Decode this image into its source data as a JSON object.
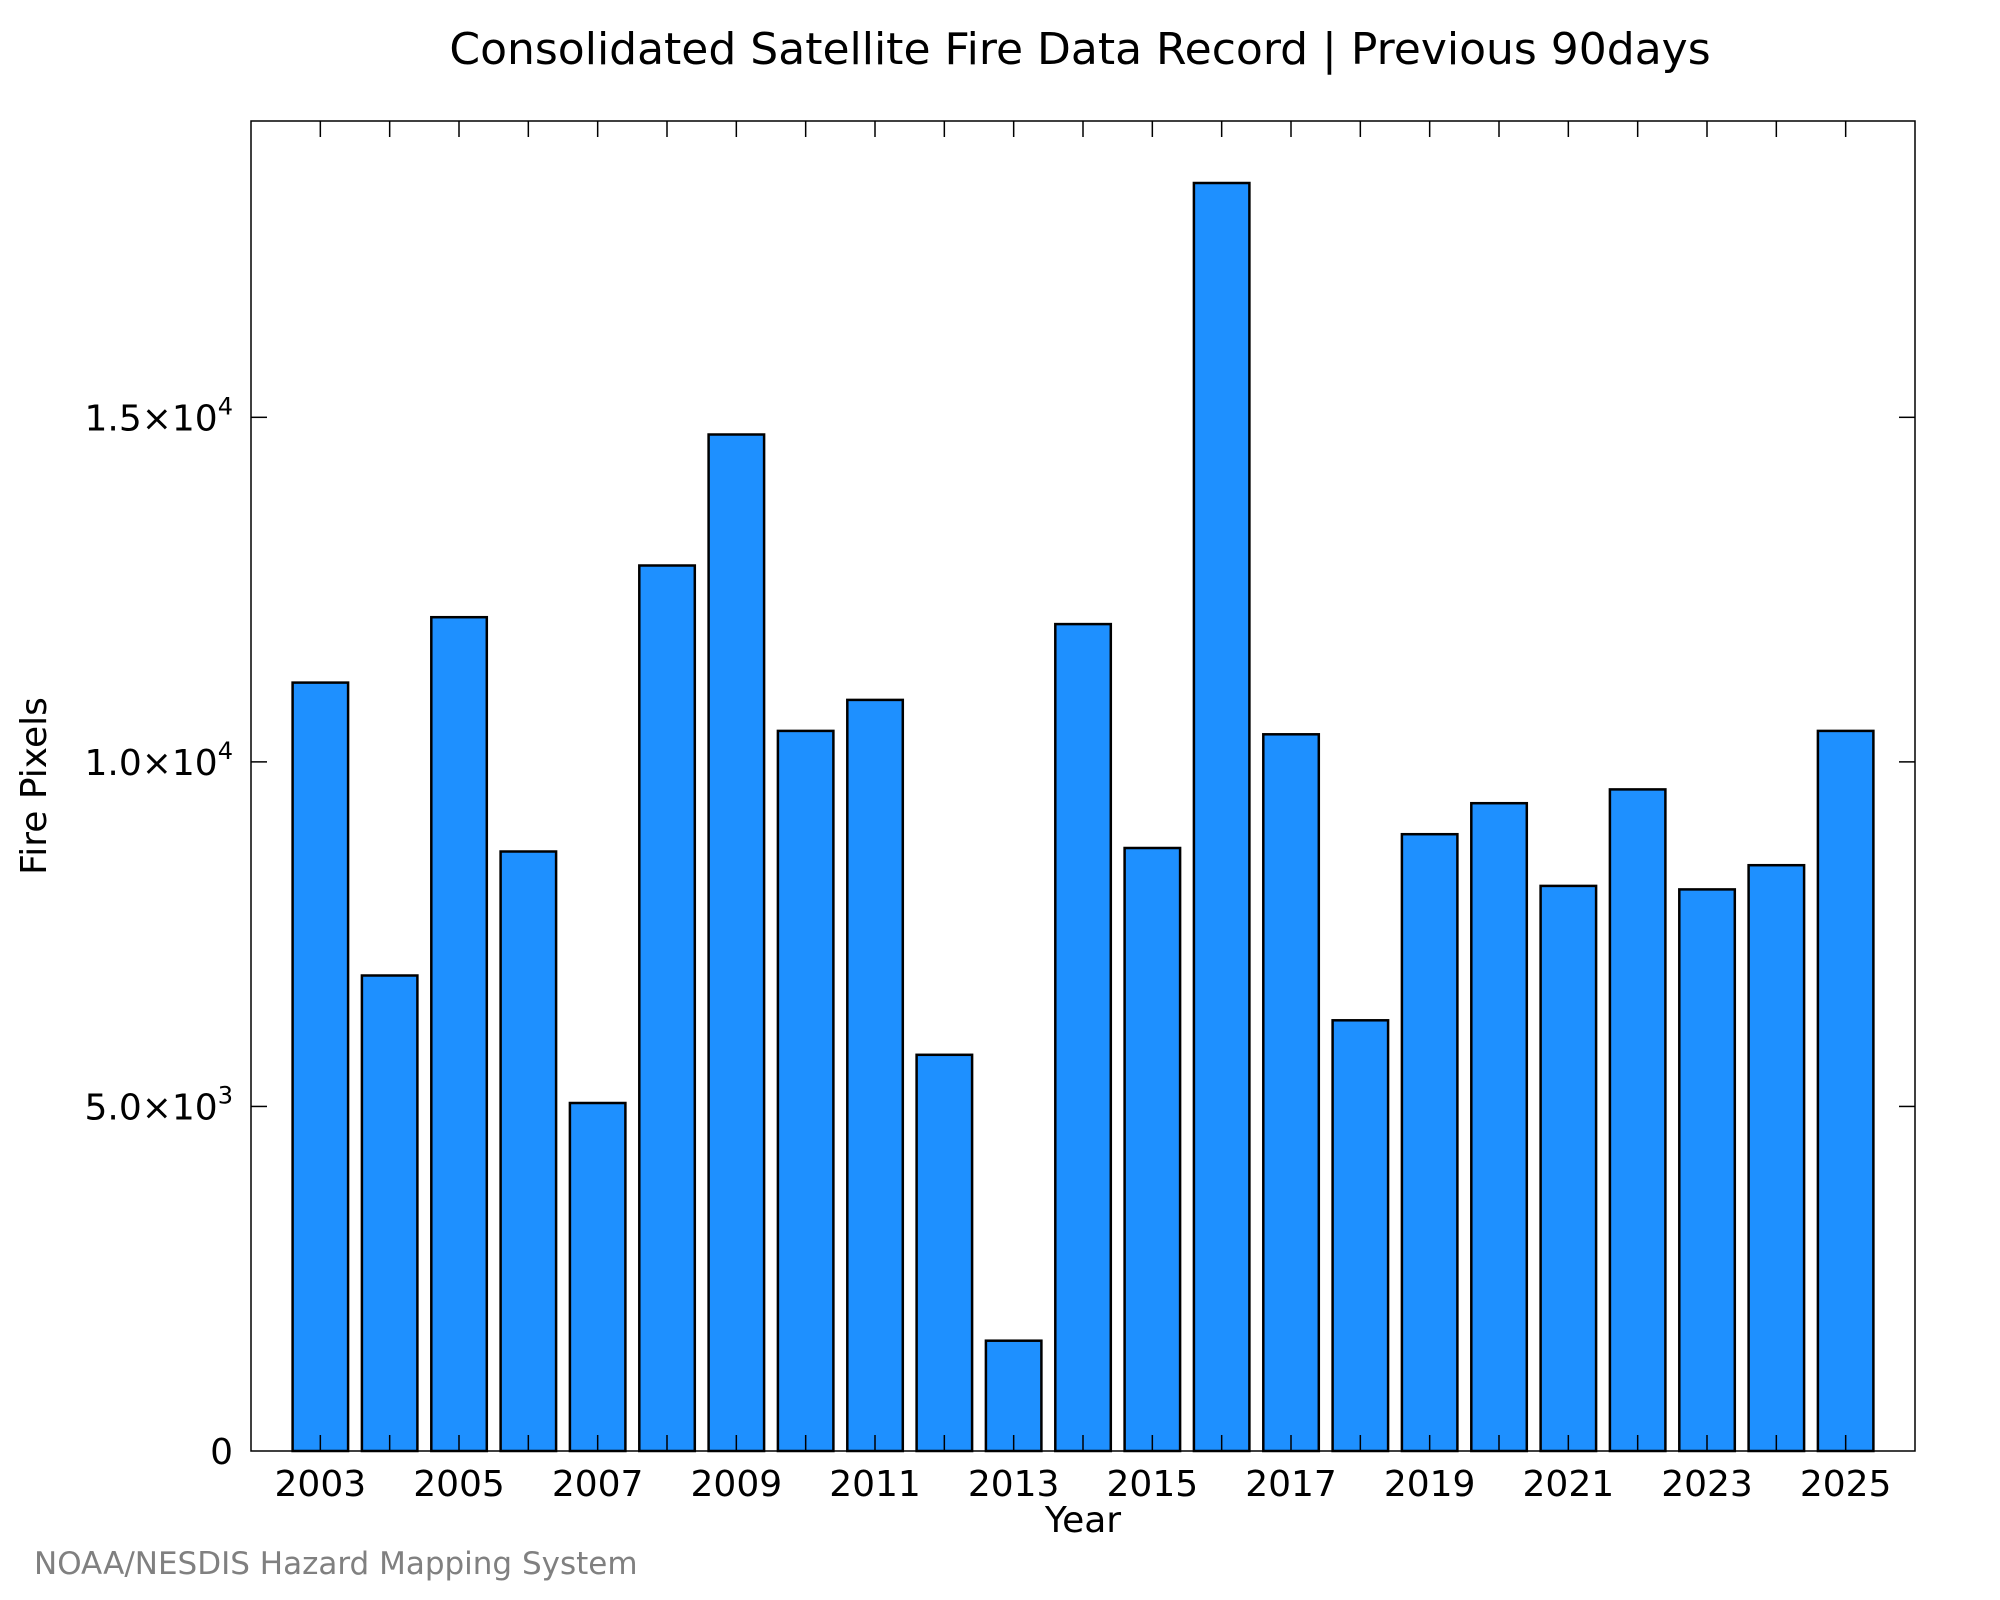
{
  "chart_data": {
    "type": "bar",
    "title": "Consolidated Satellite Fire Data Record | Previous 90days",
    "xlabel": "Year",
    "ylabel": "Fire Pixels",
    "credit": "NOAA/NESDIS Hazard Mapping System",
    "bar_color": "#1E90FF",
    "bar_edge_color": "#000000",
    "grid": false,
    "ylim": [
      0,
      19300
    ],
    "xlim": [
      2002.0,
      2026.0
    ],
    "categories": [
      2003,
      2004,
      2005,
      2006,
      2007,
      2008,
      2009,
      2010,
      2011,
      2012,
      2013,
      2014,
      2015,
      2016,
      2017,
      2018,
      2019,
      2020,
      2021,
      2022,
      2023,
      2024,
      2025
    ],
    "values": [
      11150,
      6900,
      12100,
      8700,
      5050,
      12850,
      14750,
      10450,
      10900,
      5750,
      1600,
      12000,
      8750,
      18400,
      10400,
      6250,
      8950,
      9400,
      8200,
      9600,
      8150,
      8500,
      10450
    ],
    "x_ticks": [
      {
        "value": 2003,
        "label": "2003"
      },
      {
        "value": 2005,
        "label": "2005"
      },
      {
        "value": 2007,
        "label": "2007"
      },
      {
        "value": 2009,
        "label": "2009"
      },
      {
        "value": 2011,
        "label": "2011"
      },
      {
        "value": 2013,
        "label": "2013"
      },
      {
        "value": 2015,
        "label": "2015"
      },
      {
        "value": 2017,
        "label": "2017"
      },
      {
        "value": 2019,
        "label": "2019"
      },
      {
        "value": 2021,
        "label": "2021"
      },
      {
        "value": 2023,
        "label": "2023"
      },
      {
        "value": 2025,
        "label": "2025"
      }
    ],
    "y_ticks": [
      {
        "value": 0,
        "label": "0",
        "sup": ""
      },
      {
        "value": 5000,
        "label": "5.0×10",
        "sup": "3"
      },
      {
        "value": 10000,
        "label": "1.0×10",
        "sup": "4"
      },
      {
        "value": 15000,
        "label": "1.5×10",
        "sup": "4"
      }
    ]
  }
}
